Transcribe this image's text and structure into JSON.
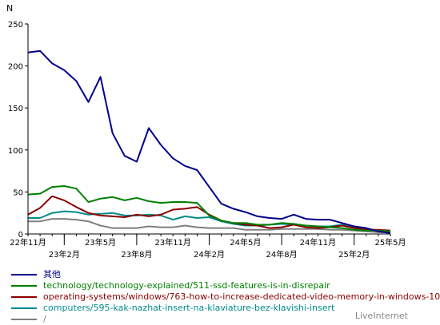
{
  "chart_data": {
    "type": "line",
    "ylabel": "N",
    "ylim": [
      0,
      250
    ],
    "yticks": [
      0,
      50,
      100,
      150,
      200,
      250
    ],
    "grid": false,
    "legend_position": "bottom",
    "x_tick_labels": [
      {
        "i": 0,
        "label": "22年11月",
        "row": 0
      },
      {
        "i": 3,
        "label": "23年2月",
        "row": 1
      },
      {
        "i": 6,
        "label": "23年5月",
        "row": 0
      },
      {
        "i": 9,
        "label": "23年8月",
        "row": 1
      },
      {
        "i": 12,
        "label": "23年11月",
        "row": 0
      },
      {
        "i": 15,
        "label": "24年2月",
        "row": 1
      },
      {
        "i": 18,
        "label": "24年5月",
        "row": 0
      },
      {
        "i": 21,
        "label": "24年8月",
        "row": 1
      },
      {
        "i": 24,
        "label": "24年11月",
        "row": 0
      },
      {
        "i": 27,
        "label": "25年2月",
        "row": 1
      },
      {
        "i": 30,
        "label": "25年5月",
        "row": 0
      }
    ],
    "series": [
      {
        "name": "其他",
        "color": "#00008b",
        "values": [
          216,
          218,
          203,
          195,
          182,
          157,
          187,
          120,
          93,
          86,
          126,
          106,
          90,
          81,
          76,
          56,
          36,
          30,
          26,
          21,
          19,
          18,
          23,
          18,
          17,
          17,
          13,
          9,
          7,
          3,
          1
        ]
      },
      {
        "name": "technology/technology-explained/511-ssd-features-is-in-disrepair",
        "color": "#008000",
        "values": [
          47,
          48,
          56,
          57,
          54,
          38,
          42,
          44,
          40,
          43,
          39,
          37,
          38,
          38,
          37,
          22,
          16,
          13,
          13,
          11,
          11,
          13,
          12,
          10,
          9,
          8,
          7,
          5,
          4,
          4,
          3
        ]
      },
      {
        "name": "operating-systems/windows/763-how-to-increase-dedicated-video-memory-in-windows-10",
        "color": "#8b0000",
        "values": [
          23,
          31,
          45,
          40,
          32,
          25,
          22,
          21,
          20,
          23,
          21,
          23,
          29,
          30,
          32,
          23,
          16,
          13,
          11,
          10,
          7,
          8,
          11,
          8,
          7,
          8,
          10,
          7,
          5,
          5,
          4
        ]
      },
      {
        "name": "computers/595-kak-nazhat-insert-na-klaviature-bez-klavishi-insert",
        "color": "#008b8b",
        "values": [
          19,
          19,
          25,
          27,
          26,
          23,
          24,
          25,
          22,
          22,
          23,
          22,
          17,
          21,
          19,
          20,
          15,
          12,
          10,
          10,
          11,
          12,
          11,
          10,
          9,
          9,
          11,
          8,
          6,
          4,
          2
        ]
      },
      {
        "name": "/",
        "color": "#808080",
        "values": [
          15,
          15,
          18,
          18,
          17,
          15,
          10,
          7,
          7,
          7,
          9,
          8,
          8,
          10,
          8,
          7,
          7,
          7,
          5,
          5,
          5,
          6,
          6,
          6,
          6,
          5,
          5,
          4,
          3,
          2,
          2
        ]
      }
    ]
  },
  "credit": "LiveInternet"
}
